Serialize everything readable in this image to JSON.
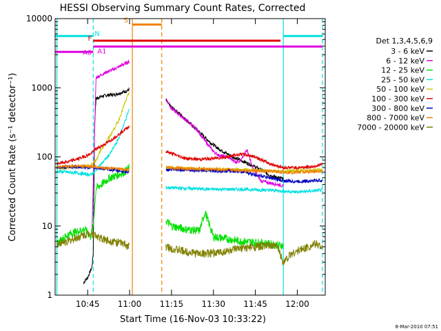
{
  "chart_data": {
    "type": "line",
    "title": "HESSI Observing Summary Count Rates, Corrected",
    "xlabel": "Start Time (16-Nov-03 10:33:22)",
    "ylabel": "Corrected Count Rate (s⁻¹ detector⁻¹)",
    "yscale": "log",
    "ylim": [
      1,
      10000
    ],
    "xlim": [
      "10:33:22",
      "12:10:00"
    ],
    "x_ticks": [
      "10:45",
      "11:00",
      "11:15",
      "11:30",
      "11:45",
      "12:00"
    ],
    "y_ticks": [
      "1",
      "10",
      "100",
      "1000",
      "10000"
    ],
    "footer_date": "8-Mar-2010 07:51",
    "legend": {
      "header": "Det 1,3,4,5,6,9",
      "placement": "right",
      "entries": [
        {
          "label": "3 - 6 keV",
          "color": "#000000"
        },
        {
          "label": "6 - 12 keV",
          "color": "#e000e0"
        },
        {
          "label": "12 - 25 keV",
          "color": "#00e000"
        },
        {
          "label": "25 - 50 keV",
          "color": "#00e0e0"
        },
        {
          "label": "50 - 100 keV",
          "color": "#c8c800"
        },
        {
          "label": "100 - 300 keV",
          "color": "#e00000"
        },
        {
          "label": "300 - 800 keV",
          "color": "#0000c0"
        },
        {
          "label": "800 - 7000 keV",
          "color": "#f08000"
        },
        {
          "label": "7000 - 20000 keV",
          "color": "#808000"
        }
      ]
    },
    "flags": [
      {
        "label": "N",
        "color": "#00e0e0",
        "value": 5600,
        "segments": [
          [
            "10:33:22",
            "10:47:00"
          ],
          [
            "11:55:00",
            "12:09:00"
          ]
        ]
      },
      {
        "label": "S",
        "color": "#f08000",
        "value": 8200,
        "segments": [
          [
            "11:01:00",
            "11:11:30"
          ]
        ]
      },
      {
        "label": "F",
        "color": "#e00000",
        "value": 4800,
        "segments": [
          [
            "10:47:00",
            "11:54:00"
          ]
        ]
      },
      {
        "label": "A0",
        "color": "#e000e0",
        "value": 3300,
        "segments": [
          [
            "10:33:22",
            "10:47:00"
          ]
        ]
      },
      {
        "label": "A1",
        "color": "#e000e0",
        "value": 3950,
        "segments": [
          [
            "10:47:00",
            "12:09:00"
          ]
        ]
      }
    ],
    "vertical_lines": [
      {
        "time": "10:34:00",
        "color": "#00e0e0",
        "style": "solid"
      },
      {
        "time": "10:47:00",
        "color": "#00e0e0",
        "style": "dashed"
      },
      {
        "time": "11:01:00",
        "color": "#f08000",
        "style": "solid"
      },
      {
        "time": "11:11:30",
        "color": "#f08000",
        "style": "dashed"
      },
      {
        "time": "11:55:00",
        "color": "#00e0e0",
        "style": "solid"
      },
      {
        "time": "12:09:00",
        "color": "#00e0e0",
        "style": "dashed"
      }
    ],
    "series": [
      {
        "name": "3 - 6 keV",
        "color": "#000000",
        "x": [
          "10:43:30",
          "10:45:00",
          "10:46:30",
          "10:47:00",
          "10:47:30",
          "10:48:00",
          "10:50:00",
          "10:52:00",
          "10:55:00",
          "10:57:00",
          "10:59:00",
          "11:00:00",
          "11:13:00",
          "11:15:00",
          "11:18:00",
          "11:20:00",
          "11:23:00",
          "11:26:00",
          "11:29:00",
          "11:32:00",
          "11:35:00",
          "11:38:00",
          "11:41:00",
          "11:44:00",
          "11:47:00",
          "11:50:00",
          "11:53:00",
          "11:55:00"
        ],
        "y": [
          1.5,
          1.8,
          2.5,
          4,
          300,
          700,
          750,
          780,
          800,
          850,
          900,
          950,
          650,
          520,
          420,
          350,
          270,
          210,
          160,
          130,
          110,
          95,
          85,
          75,
          65,
          55,
          50,
          48
        ]
      },
      {
        "name": "6 - 12 keV",
        "color": "#e000e0",
        "x": [
          "10:46:30",
          "10:47:00",
          "10:48:00",
          "10:50:00",
          "10:52:00",
          "10:55:00",
          "10:57:00",
          "10:59:00",
          "11:00:00",
          "11:13:00",
          "11:15:00",
          "11:18:00",
          "11:21:00",
          "11:24:00",
          "11:27:00",
          "11:30:00",
          "11:32:00",
          "11:35:00",
          "11:38:00",
          "11:40:00",
          "11:42:00",
          "11:44:00",
          "11:47:00",
          "11:50:00",
          "11:53:00",
          "11:55:00"
        ],
        "y": [
          8,
          40,
          1400,
          1550,
          1700,
          1900,
          2100,
          2300,
          2400,
          700,
          500,
          400,
          320,
          250,
          170,
          120,
          105,
          100,
          85,
          90,
          130,
          70,
          45,
          42,
          40,
          38
        ]
      },
      {
        "name": "12 - 25 keV",
        "color": "#00e000",
        "x": [
          "10:34:00",
          "10:36:00",
          "10:38:00",
          "10:40:00",
          "10:42:00",
          "10:44:00",
          "10:46:00",
          "10:47:00",
          "10:48:00",
          "10:50:00",
          "10:53:00",
          "10:56:00",
          "10:58:00",
          "11:00:00",
          "11:13:00",
          "11:15:00",
          "11:20:00",
          "11:25:00",
          "11:27:00",
          "11:30:00",
          "11:35:00",
          "11:40:00",
          "11:45:00",
          "11:50:00",
          "11:55:00"
        ],
        "y": [
          5.5,
          6.5,
          7.5,
          8,
          8.5,
          9,
          7,
          10,
          35,
          40,
          50,
          55,
          60,
          70,
          12,
          10,
          9,
          8.5,
          16,
          7,
          6.5,
          6,
          5.8,
          5.5,
          5.2
        ]
      },
      {
        "name": "25 - 50 keV",
        "color": "#00e0e0",
        "x": [
          "10:34:00",
          "10:38:00",
          "10:42:00",
          "10:46:00",
          "10:47:30",
          "10:50:00",
          "10:53:00",
          "10:56:00",
          "10:58:00",
          "11:00:00",
          "11:13:00",
          "11:20:00",
          "11:30:00",
          "11:40:00",
          "11:50:00",
          "11:55:00",
          "12:00:00",
          "12:05:00",
          "12:09:00"
        ],
        "y": [
          62,
          60,
          58,
          55,
          60,
          80,
          110,
          180,
          300,
          500,
          36,
          35,
          34,
          34,
          33,
          32,
          31,
          32,
          33
        ]
      },
      {
        "name": "50 - 100 keV",
        "color": "#c8c800",
        "x": [
          "10:34:00",
          "10:38:00",
          "10:42:00",
          "10:46:00",
          "10:48:00",
          "10:50:00",
          "10:53:00",
          "10:56:00",
          "10:58:00",
          "11:00:00",
          "11:13:00",
          "11:20:00",
          "11:30:00",
          "11:40:00",
          "11:50:00",
          "11:55:00",
          "12:00:00",
          "12:05:00",
          "12:09:00"
        ],
        "y": [
          68,
          70,
          72,
          75,
          90,
          130,
          200,
          330,
          550,
          900,
          70,
          68,
          66,
          65,
          63,
          62,
          63,
          64,
          65
        ]
      },
      {
        "name": "100 - 300 keV",
        "color": "#e00000",
        "x": [
          "10:34:00",
          "10:38:00",
          "10:42:00",
          "10:46:00",
          "10:48:00",
          "10:52:00",
          "10:56:00",
          "11:00:00",
          "11:13:00",
          "11:20:00",
          "11:25:00",
          "11:30:00",
          "11:35:00",
          "11:40:00",
          "11:45:00",
          "11:50:00",
          "11:55:00",
          "12:00:00",
          "12:05:00",
          "12:09:00"
        ],
        "y": [
          80,
          85,
          95,
          110,
          130,
          160,
          210,
          280,
          120,
          95,
          92,
          95,
          100,
          110,
          100,
          80,
          70,
          70,
          72,
          78
        ]
      },
      {
        "name": "300 - 800 keV",
        "color": "#0000c0",
        "x": [
          "10:34:00",
          "10:40:00",
          "10:46:00",
          "10:50:00",
          "10:55:00",
          "11:00:00",
          "11:13:00",
          "11:20:00",
          "11:30:00",
          "11:40:00",
          "11:45:00",
          "11:50:00",
          "11:55:00",
          "12:00:00",
          "12:05:00",
          "12:09:00"
        ],
        "y": [
          70,
          72,
          70,
          68,
          64,
          60,
          65,
          65,
          63,
          62,
          55,
          50,
          45,
          44,
          45,
          46
        ]
      },
      {
        "name": "800 - 7000 keV",
        "color": "#f08000",
        "x": [
          "10:34:00",
          "10:40:00",
          "10:46:00",
          "10:50:00",
          "10:55:00",
          "11:00:00",
          "11:13:00",
          "11:20:00",
          "11:30:00",
          "11:40:00",
          "11:50:00",
          "11:55:00",
          "12:00:00",
          "12:05:00",
          "12:09:00"
        ],
        "y": [
          72,
          74,
          73,
          70,
          67,
          65,
          70,
          68,
          66,
          64,
          62,
          60,
          60,
          61,
          62
        ]
      },
      {
        "name": "7000 - 20000 keV",
        "color": "#808000",
        "x": [
          "10:34:00",
          "10:38:00",
          "10:42:00",
          "10:46:00",
          "10:50:00",
          "10:54:00",
          "10:58:00",
          "11:00:00",
          "11:13:00",
          "11:17:00",
          "11:21:00",
          "11:25:00",
          "11:29:00",
          "11:33:00",
          "11:37:00",
          "11:41:00",
          "11:45:00",
          "11:49:00",
          "11:53:00",
          "11:55:00",
          "11:58:00",
          "12:01:00",
          "12:04:00",
          "12:07:00",
          "12:09:00"
        ],
        "y": [
          5.5,
          6,
          7,
          8,
          6.5,
          6,
          5.5,
          5,
          5,
          4.5,
          4.2,
          4,
          4,
          4.2,
          4.5,
          4.8,
          5,
          5.2,
          5,
          3,
          4,
          4.5,
          5,
          5.5,
          5
        ]
      }
    ]
  }
}
